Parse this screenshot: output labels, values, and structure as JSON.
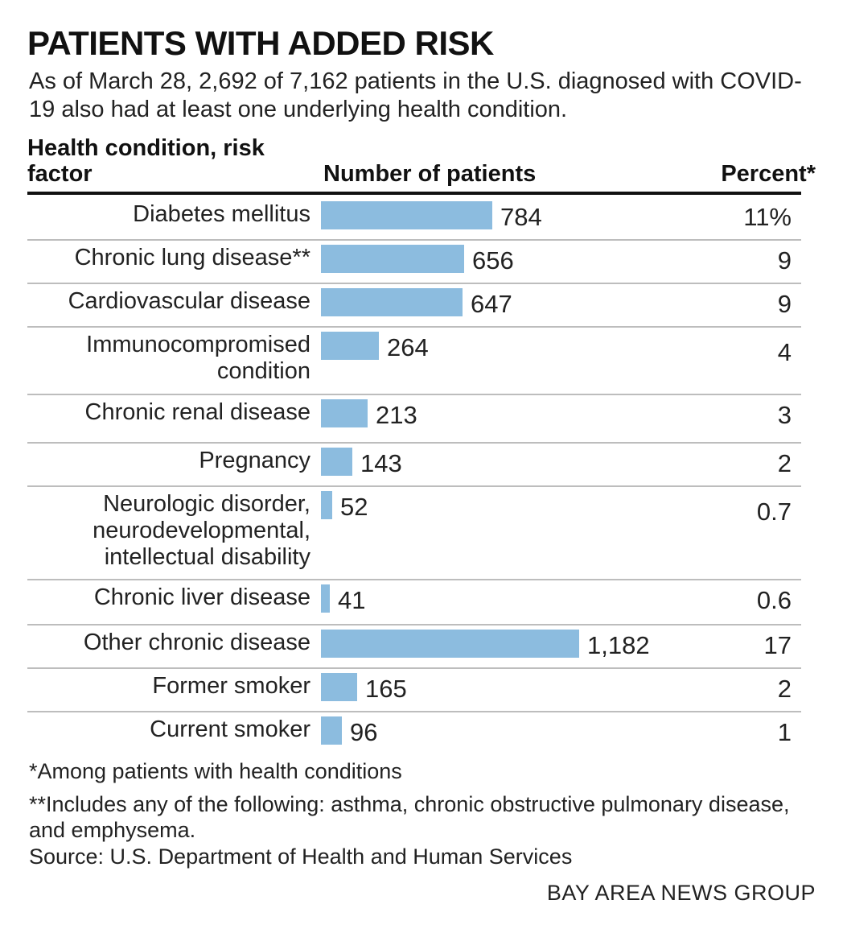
{
  "chart_data": {
    "type": "bar",
    "orientation": "horizontal",
    "title": "PATIENTS WITH ADDED RISK",
    "subtitle": "As of March 28, 2,692 of 7,162 patients in the U.S. diagnosed with COVID-19 also had at least one underlying health condition.",
    "column_headers": {
      "condition": "Health condition, risk factor",
      "number": "Number of patients",
      "percent": "Percent*"
    },
    "xlim": [
      0,
      1182
    ],
    "rows": [
      {
        "label": "Diabetes mellitus",
        "value": 784,
        "value_label": "784",
        "percent": "11%"
      },
      {
        "label": "Chronic lung disease**",
        "value": 656,
        "value_label": "656",
        "percent": "9"
      },
      {
        "label": "Cardiovascular disease",
        "value": 647,
        "value_label": "647",
        "percent": "9"
      },
      {
        "label": "Immunocompromised condition",
        "value": 264,
        "value_label": "264",
        "percent": "4"
      },
      {
        "label": "Chronic renal disease",
        "value": 213,
        "value_label": "213",
        "percent": "3"
      },
      {
        "label": "Pregnancy",
        "value": 143,
        "value_label": "143",
        "percent": "2"
      },
      {
        "label": "Neurologic disorder, neurodevelopmental, intellectual disability",
        "value": 52,
        "value_label": "52",
        "percent": "0.7"
      },
      {
        "label": "Chronic liver disease",
        "value": 41,
        "value_label": "41",
        "percent": "0.6"
      },
      {
        "label": "Other chronic disease",
        "value": 1182,
        "value_label": "1,182",
        "percent": "17"
      },
      {
        "label": "Former smoker",
        "value": 165,
        "value_label": "165",
        "percent": "2"
      },
      {
        "label": "Current smoker",
        "value": 96,
        "value_label": "96",
        "percent": "1"
      }
    ],
    "bar_color": "#8cbcdf"
  },
  "footnotes": {
    "percent_note": "*Among patients with health conditions",
    "lung_note": "**Includes any of the following: asthma, chronic obstructive pulmonary disease, and emphysema.",
    "source": "Source: U.S. Department of Health and Human Services"
  },
  "credit": "BAY AREA NEWS GROUP"
}
